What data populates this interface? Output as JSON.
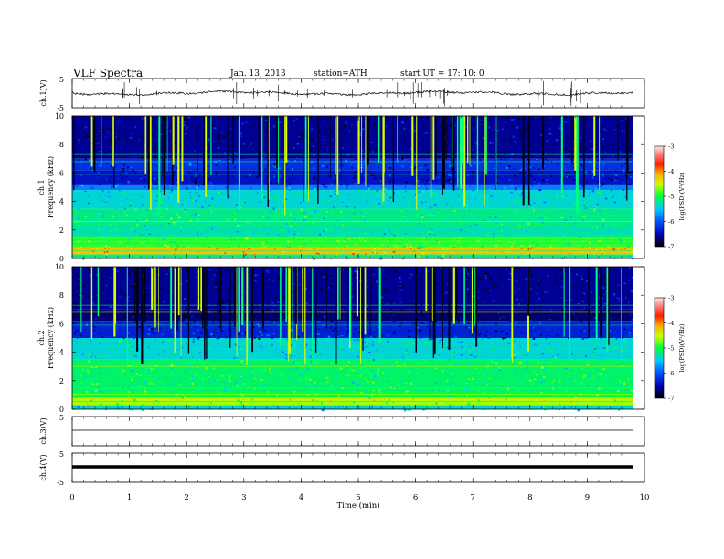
{
  "header": {
    "title": "VLF  Spectra",
    "date": "Jan.  13,  2013",
    "station": "station=ATH",
    "start": "start  UT  =    17: 10: 0"
  },
  "chart_data": [
    {
      "type": "line",
      "ylabel": "ch.1(V)",
      "xlim": [
        0,
        10
      ],
      "ylim": [
        -5,
        5
      ],
      "yticks": [
        "5",
        "-5"
      ],
      "description_values": {
        "baseline_V": 0,
        "spike_count_visible": 40
      }
    },
    {
      "type": "heatmap",
      "ylabel_lines": [
        "ch.1",
        "Frequency  (kHz)"
      ],
      "xlim": [
        0,
        9.8
      ],
      "ylim": [
        0,
        10
      ],
      "yticks": [
        "0",
        "2",
        "4",
        "6",
        "8",
        "10"
      ],
      "colorbar": {
        "label": "log(PSD)(V²/Hz)",
        "range": [
          -7,
          -3
        ],
        "ticks": [
          "-3",
          "-4",
          "-5",
          "-6",
          "-7"
        ]
      },
      "bands_kHz_to_logPSD": [
        [
          0.0,
          0.3,
          -5.2
        ],
        [
          0.3,
          0.8,
          -4.2
        ],
        [
          0.8,
          1.5,
          -4.9
        ],
        [
          1.5,
          2.2,
          -5.3
        ],
        [
          2.2,
          3.5,
          -5.2
        ],
        [
          3.5,
          4.8,
          -5.4
        ],
        [
          4.8,
          5.2,
          -5.8
        ],
        [
          5.2,
          6.2,
          -6.4
        ],
        [
          6.2,
          7.0,
          -6.2
        ],
        [
          7.0,
          10.0,
          -6.6
        ]
      ]
    },
    {
      "type": "heatmap",
      "ylabel_lines": [
        "ch.2",
        "Frequency  (kHz)"
      ],
      "xlim": [
        0,
        9.8
      ],
      "ylim": [
        0,
        10
      ],
      "yticks": [
        "0",
        "2",
        "4",
        "6",
        "8",
        "10"
      ],
      "colorbar": {
        "label": "log(PSD)(V²/Hz)",
        "range": [
          -7,
          -3
        ],
        "ticks": [
          "-3",
          "-4",
          "-5",
          "-6",
          "-7"
        ]
      },
      "bands_kHz_to_logPSD": [
        [
          0.0,
          0.3,
          -5.4
        ],
        [
          0.3,
          0.8,
          -4.6
        ],
        [
          0.8,
          1.5,
          -5.0
        ],
        [
          1.5,
          3.5,
          -5.1
        ],
        [
          3.5,
          5.0,
          -5.4
        ],
        [
          5.0,
          6.2,
          -6.3
        ],
        [
          6.2,
          7.0,
          -6.7
        ],
        [
          7.0,
          10.0,
          -6.6
        ]
      ]
    },
    {
      "type": "line",
      "ylabel": "ch.3(V)",
      "xlim": [
        0,
        10
      ],
      "ylim": [
        -5,
        5
      ],
      "yticks": [
        "5",
        "-5"
      ],
      "description_values": {
        "baseline_V": 0
      }
    },
    {
      "type": "line",
      "ylabel": "ch.4(V)",
      "xlim": [
        0,
        10
      ],
      "ylim": [
        -5,
        5
      ],
      "yticks": [
        "5",
        "-5"
      ],
      "description_values": {
        "baseline_V": 0
      }
    }
  ],
  "xaxis": {
    "label": "Time  (min)",
    "ticks": [
      "0",
      "1",
      "2",
      "3",
      "4",
      "5",
      "6",
      "7",
      "8",
      "9",
      "10"
    ]
  }
}
